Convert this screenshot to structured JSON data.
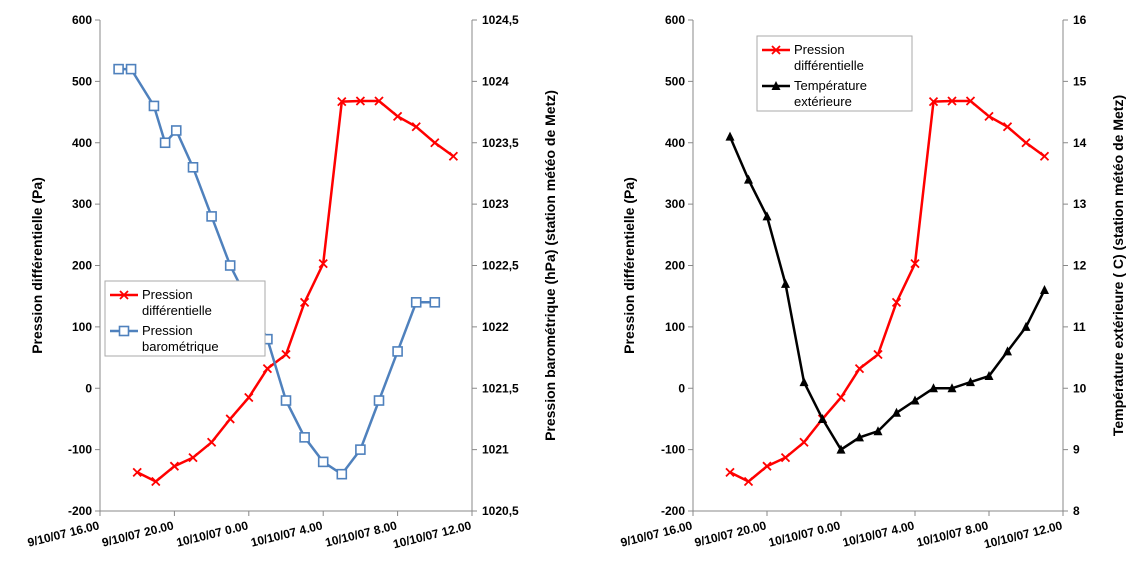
{
  "chart_data": [
    {
      "type": "line",
      "title": "",
      "x_tick_labels": [
        "9/10/07 16.00",
        "9/10/07 20.00",
        "10/10/07 0.00",
        "10/10/07 4.00",
        "10/10/07 8.00",
        "10/10/07 12.00"
      ],
      "xlim_hours": [
        0,
        20
      ],
      "ylabel_left": "Pression différentielle (Pa)",
      "ylim_left": [
        -200,
        600
      ],
      "yticks_left": [
        "-200",
        "-100",
        "0",
        "100",
        "200",
        "300",
        "400",
        "500",
        "600"
      ],
      "ylabel_right": "Pression barométrique (hPa) (station météo de Metz)",
      "ylim_right": [
        1020.5,
        1024.5
      ],
      "yticks_right": [
        "1020,5",
        "1021",
        "1021,5",
        "1022",
        "1022,5",
        "1023",
        "1023,5",
        "1024",
        "1024,5"
      ],
      "grid": false,
      "legend_position": "center-left",
      "series": [
        {
          "name": "Pression différentielle",
          "axis": "left",
          "color": "#ff0000",
          "marker": "x",
          "x": [
            2,
            3,
            4,
            5,
            6,
            7,
            8,
            9,
            10,
            11,
            12,
            13,
            14,
            15,
            16,
            17,
            18,
            19
          ],
          "values": [
            -137,
            -152,
            -127,
            -113,
            -88,
            -50,
            -15,
            32,
            55,
            140,
            203,
            467,
            468,
            468,
            443,
            426,
            400,
            378
          ]
        },
        {
          "name": "Pression barométrique",
          "axis": "right",
          "color": "#4f81bd",
          "marker": "square",
          "x": [
            1,
            1.67,
            2.9,
            3.5,
            4.1,
            5,
            6,
            7,
            8,
            9,
            10,
            11,
            12,
            13,
            14,
            15,
            16,
            17,
            18
          ],
          "values": [
            1024.1,
            1024.1,
            1023.8,
            1023.5,
            1023.6,
            1023.3,
            1022.9,
            1022.5,
            1022.2,
            1021.9,
            1021.4,
            1021.1,
            1020.9,
            1020.8,
            1021.0,
            1021.4,
            1021.8,
            1022.2,
            1022.2
          ]
        }
      ]
    },
    {
      "type": "line",
      "title": "",
      "x_tick_labels": [
        "9/10/07 16.00",
        "9/10/07 20.00",
        "10/10/07 0.00",
        "10/10/07 4.00",
        "10/10/07 8.00",
        "10/10/07 12.00"
      ],
      "xlim_hours": [
        0,
        20
      ],
      "ylabel_left": "Pression différentielle (Pa)",
      "ylim_left": [
        -200,
        600
      ],
      "yticks_left": [
        "-200",
        "-100",
        "0",
        "100",
        "200",
        "300",
        "400",
        "500",
        "600"
      ],
      "ylabel_right": "Température extérieure ( C) (station météo de Metz)",
      "ylim_right": [
        8,
        16
      ],
      "yticks_right": [
        "8",
        "9",
        "10",
        "11",
        "12",
        "13",
        "14",
        "15",
        "16"
      ],
      "grid": false,
      "legend_position": "top-left",
      "series": [
        {
          "name": "Pression différentielle",
          "axis": "left",
          "color": "#ff0000",
          "marker": "x",
          "x": [
            2,
            3,
            4,
            5,
            6,
            7,
            8,
            9,
            10,
            11,
            12,
            13,
            14,
            15,
            16,
            17,
            18,
            19
          ],
          "values": [
            -137,
            -152,
            -127,
            -113,
            -88,
            -50,
            -15,
            32,
            55,
            140,
            203,
            467,
            468,
            468,
            443,
            426,
            400,
            378
          ]
        },
        {
          "name": "Température extérieure",
          "axis": "right",
          "color": "#000000",
          "marker": "triangle",
          "x": [
            2,
            3,
            4,
            5,
            6,
            7,
            8,
            9,
            10,
            11,
            12,
            13,
            14,
            15,
            16,
            17,
            18,
            19
          ],
          "values": [
            14.1,
            13.4,
            12.8,
            11.7,
            10.1,
            9.5,
            9.0,
            9.2,
            9.3,
            9.6,
            9.8,
            10.0,
            10.0,
            10.1,
            10.2,
            10.6,
            11.0,
            11.6
          ]
        }
      ]
    }
  ]
}
